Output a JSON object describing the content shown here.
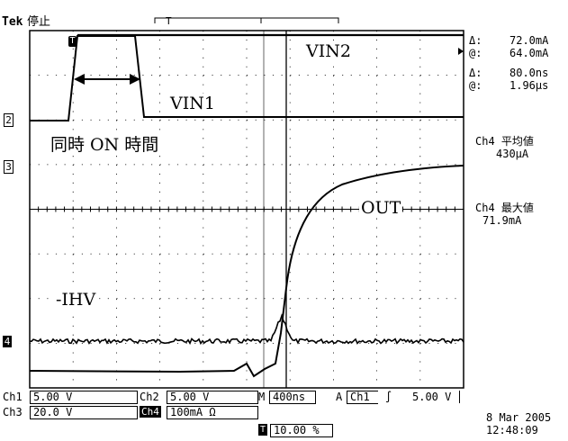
{
  "header": {
    "brand": "Tek",
    "status": "停止"
  },
  "markers": {
    "ch2": "2",
    "ch3": "3",
    "ch4": "4",
    "trigger": "T",
    "t_icon": "T"
  },
  "annotations": {
    "vin1": "VIN1",
    "vin2": "VIN2",
    "simul_on": "同時 ON 時間",
    "out": "OUT",
    "ihv": "-IHV"
  },
  "cursor_readout": {
    "delta_i_sym": "Δ:",
    "delta_i": "72.0mA",
    "at_i_sym": "@:",
    "at_i": "64.0mA",
    "delta_t_sym": "Δ:",
    "delta_t": "80.0ns",
    "at_t_sym": "@:",
    "at_t": "1.96μs"
  },
  "measurements": {
    "m1_label": "Ch4 平均値",
    "m1_value": "430μA",
    "m2_label": "Ch4 最大値",
    "m2_value": "71.9mA"
  },
  "settings": {
    "ch1_label": "Ch1",
    "ch1_value": "5.00 V",
    "ch2_label": "Ch2",
    "ch2_value": "5.00 V",
    "ch3_label": "Ch3",
    "ch3_value": "20.0 V",
    "ch4_label": "Ch4",
    "ch4_value": "100mA Ω",
    "timebase_label": "M",
    "timebase_value": "400ns",
    "trigger_label": "A",
    "trigger_source": "Ch1",
    "trigger_slope": "∫",
    "trigger_level": "5.00 V",
    "trigger_pos": "10.00 %"
  },
  "datetime": {
    "date": "8 Mar 2005",
    "time": "12:48:09"
  }
}
